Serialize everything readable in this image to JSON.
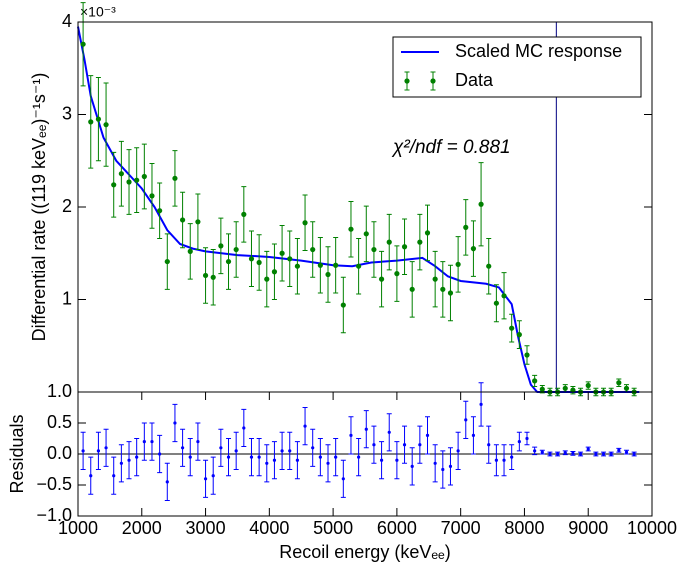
{
  "chart_data": [
    {
      "type": "line",
      "ylabel": "Differential rate ((119 keVₑₑ)⁻¹s⁻¹)",
      "y_offset_label": "×10⁻³",
      "annotation": "χ²/ndf = 0.881",
      "xlim": [
        1000,
        10000
      ],
      "ylim": [
        0,
        4
      ],
      "yticks": [
        1,
        2,
        3,
        4
      ],
      "vline": 8500,
      "vline_color": "#000080",
      "legend": "upper right",
      "grid": false,
      "series": [
        {
          "name": "Scaled MC response",
          "color": "#0000ff",
          "type": "line",
          "x": [
            1000,
            1100,
            1200,
            1400,
            1600,
            1800,
            2000,
            2200,
            2400,
            2600,
            2800,
            3000,
            3500,
            4000,
            4500,
            5000,
            5300,
            5600,
            6000,
            6400,
            6600,
            6800,
            7000,
            7400,
            7600,
            7800,
            7900,
            8000,
            8100,
            8200,
            9800
          ],
          "values": [
            3.95,
            3.6,
            3.2,
            2.75,
            2.5,
            2.35,
            2.2,
            2.0,
            1.75,
            1.6,
            1.55,
            1.52,
            1.48,
            1.46,
            1.42,
            1.37,
            1.36,
            1.4,
            1.42,
            1.45,
            1.36,
            1.25,
            1.2,
            1.17,
            1.13,
            0.95,
            0.6,
            0.3,
            0.08,
            0.0,
            0.0
          ]
        },
        {
          "name": "Data",
          "color": "#008000",
          "type": "errorbar",
          "x": [
            1080,
            1200,
            1320,
            1440,
            1560,
            1680,
            1800,
            1920,
            2040,
            2160,
            2280,
            2400,
            2520,
            2640,
            2760,
            2880,
            3000,
            3120,
            3240,
            3360,
            3480,
            3600,
            3720,
            3840,
            3960,
            4080,
            4200,
            4320,
            4440,
            4560,
            4680,
            4800,
            4920,
            5040,
            5160,
            5280,
            5400,
            5520,
            5640,
            5760,
            5880,
            6000,
            6120,
            6240,
            6360,
            6480,
            6600,
            6720,
            6840,
            6960,
            7080,
            7200,
            7320,
            7440,
            7560,
            7680,
            7800,
            7920,
            8040,
            8160,
            8280,
            8400,
            8520,
            8640,
            8760,
            8880,
            9000,
            9120,
            9240,
            9360,
            9480,
            9600,
            9720
          ],
          "values": [
            3.76,
            2.92,
            2.95,
            2.89,
            2.24,
            2.36,
            2.27,
            2.29,
            2.33,
            2.12,
            1.96,
            1.41,
            2.31,
            1.86,
            1.52,
            1.84,
            1.26,
            1.24,
            1.58,
            1.41,
            1.54,
            1.92,
            1.44,
            1.4,
            1.22,
            1.3,
            1.5,
            1.44,
            1.36,
            1.83,
            1.54,
            1.37,
            1.27,
            1.37,
            0.94,
            1.76,
            1.36,
            1.71,
            1.54,
            1.22,
            1.62,
            1.28,
            1.57,
            1.11,
            1.62,
            1.72,
            1.22,
            1.11,
            1.07,
            1.38,
            1.78,
            1.55,
            2.03,
            1.36,
            0.96,
            1.04,
            0.69,
            0.62,
            0.4,
            0.12,
            0.03,
            0.0,
            0.0,
            0.04,
            0.02,
            0.0,
            0.07,
            0.0,
            0.0,
            0.0,
            0.1,
            0.04,
            0.0
          ],
          "errors": [
            0.45,
            0.5,
            0.45,
            0.45,
            0.35,
            0.35,
            0.35,
            0.35,
            0.35,
            0.35,
            0.3,
            0.3,
            0.3,
            0.3,
            0.3,
            0.3,
            0.3,
            0.3,
            0.3,
            0.3,
            0.3,
            0.3,
            0.3,
            0.3,
            0.3,
            0.3,
            0.3,
            0.3,
            0.3,
            0.3,
            0.3,
            0.3,
            0.3,
            0.3,
            0.3,
            0.3,
            0.3,
            0.3,
            0.3,
            0.3,
            0.3,
            0.3,
            0.3,
            0.3,
            0.3,
            0.3,
            0.3,
            0.3,
            0.3,
            0.3,
            0.3,
            0.3,
            0.45,
            0.3,
            0.2,
            0.25,
            0.15,
            0.15,
            0.1,
            0.06,
            0.04,
            0.04,
            0.04,
            0.04,
            0.04,
            0.04,
            0.04,
            0.04,
            0.04,
            0.04,
            0.04,
            0.04,
            0.04
          ]
        }
      ]
    },
    {
      "type": "errorbar",
      "xlabel": "Recoil energy (keVₑₑ)",
      "ylabel": "Residuals",
      "xlim": [
        1000,
        10000
      ],
      "ylim": [
        -1,
        1
      ],
      "xticks": [
        1000,
        2000,
        3000,
        4000,
        5000,
        6000,
        7000,
        8000,
        9000,
        10000
      ],
      "yticks": [
        {
          "value": -1,
          "label": "−1.0"
        },
        {
          "value": -0.5,
          "label": "−0.5"
        },
        {
          "value": 0,
          "label": "0.0"
        },
        {
          "value": 0.5,
          "label": "0.5"
        },
        {
          "value": 1,
          "label": "1.0"
        }
      ],
      "hline": 0,
      "color": "#0000ff",
      "x": [
        1080,
        1200,
        1320,
        1440,
        1560,
        1680,
        1800,
        1920,
        2040,
        2160,
        2280,
        2400,
        2520,
        2640,
        2760,
        2880,
        3000,
        3120,
        3240,
        3360,
        3480,
        3600,
        3720,
        3840,
        3960,
        4080,
        4200,
        4320,
        4440,
        4560,
        4680,
        4800,
        4920,
        5040,
        5160,
        5280,
        5400,
        5520,
        5640,
        5760,
        5880,
        6000,
        6120,
        6240,
        6360,
        6480,
        6600,
        6720,
        6840,
        6960,
        7080,
        7200,
        7320,
        7440,
        7560,
        7680,
        7800,
        7920,
        8040,
        8160,
        8280,
        8400,
        8520,
        8640,
        8760,
        8880,
        9000,
        9120,
        9240,
        9360,
        9480,
        9600,
        9720
      ],
      "values": [
        0.05,
        -0.35,
        0.05,
        0.1,
        -0.35,
        -0.15,
        -0.1,
        -0.05,
        0.2,
        0.2,
        0.0,
        -0.45,
        0.5,
        0.1,
        -0.05,
        0.2,
        -0.4,
        -0.35,
        0.1,
        -0.05,
        0.05,
        0.42,
        -0.05,
        -0.05,
        -0.15,
        -0.1,
        0.05,
        0.05,
        -0.1,
        0.45,
        0.1,
        -0.05,
        -0.15,
        -0.05,
        -0.4,
        0.3,
        -0.05,
        0.4,
        0.15,
        -0.1,
        0.35,
        -0.1,
        0.15,
        -0.2,
        0.15,
        0.3,
        -0.15,
        -0.25,
        -0.2,
        0.05,
        0.55,
        0.3,
        0.8,
        0.15,
        -0.1,
        -0.1,
        -0.05,
        0.2,
        0.25,
        0.05,
        0.03,
        0.0,
        0.0,
        0.02,
        0.01,
        0.0,
        0.08,
        0.0,
        0.0,
        0.0,
        0.06,
        0.03,
        0.0
      ],
      "errors": [
        0.3,
        0.3,
        0.3,
        0.3,
        0.3,
        0.3,
        0.3,
        0.3,
        0.3,
        0.3,
        0.3,
        0.3,
        0.3,
        0.3,
        0.3,
        0.3,
        0.3,
        0.3,
        0.3,
        0.3,
        0.3,
        0.3,
        0.3,
        0.3,
        0.3,
        0.3,
        0.3,
        0.3,
        0.3,
        0.3,
        0.3,
        0.3,
        0.3,
        0.3,
        0.3,
        0.3,
        0.3,
        0.3,
        0.3,
        0.3,
        0.3,
        0.3,
        0.3,
        0.3,
        0.3,
        0.3,
        0.3,
        0.3,
        0.3,
        0.3,
        0.3,
        0.3,
        0.35,
        0.3,
        0.25,
        0.25,
        0.2,
        0.15,
        0.1,
        0.06,
        0.03,
        0.03,
        0.03,
        0.03,
        0.03,
        0.03,
        0.03,
        0.03,
        0.03,
        0.03,
        0.03,
        0.03,
        0.03
      ]
    }
  ]
}
